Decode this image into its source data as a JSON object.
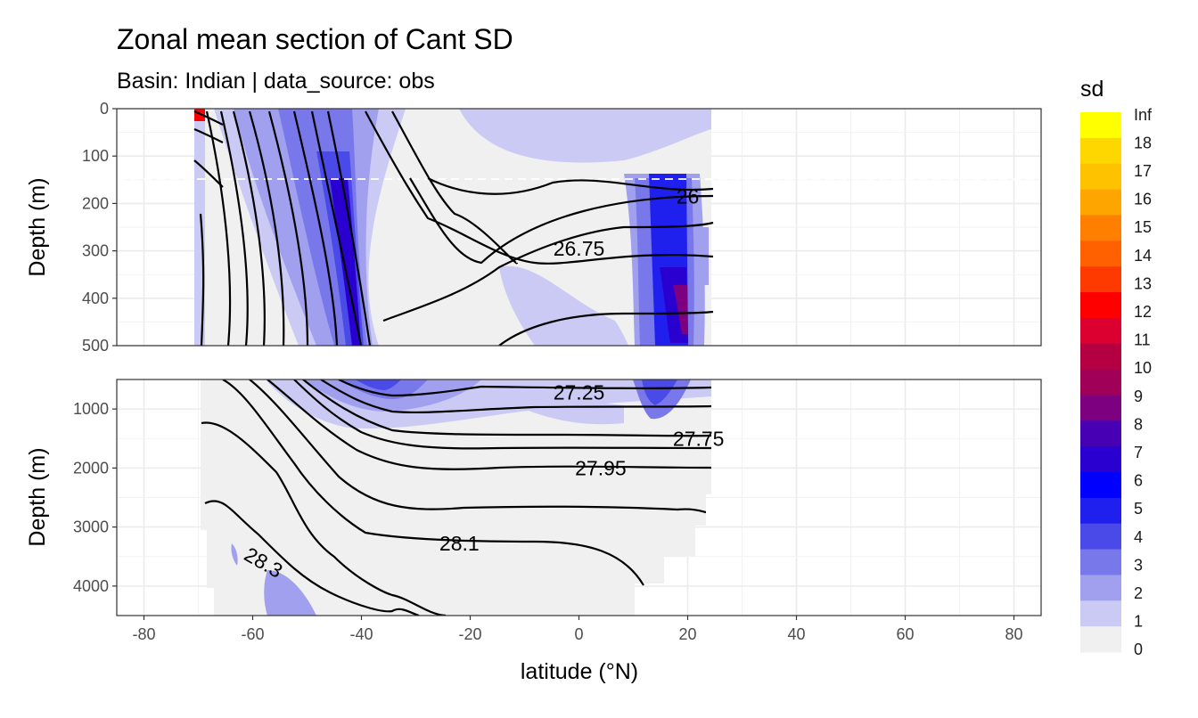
{
  "chart_data": {
    "type": "heatmap",
    "title": "Zonal mean section of Cant SD",
    "subtitle": "Basin: Indian | data_source: obs",
    "xlabel": "latitude (°N)",
    "ylabel": "Depth (m)",
    "xlim": [
      -85,
      85
    ],
    "x_ticks": [
      "-80",
      "-60",
      "-40",
      "-20",
      "0",
      "20",
      "40",
      "60",
      "80"
    ],
    "panels": [
      {
        "ylim": [
          0,
          500
        ],
        "y_ticks": [
          "0",
          "100",
          "200",
          "300",
          "400",
          "500"
        ],
        "reference_line_depth": 150
      },
      {
        "ylim": [
          500,
          4500
        ],
        "y_ticks": [
          "1000",
          "2000",
          "3000",
          "4000"
        ]
      }
    ],
    "legend": {
      "title": "sd",
      "position": "right",
      "labels": [
        "Inf",
        "18",
        "17",
        "16",
        "15",
        "14",
        "13",
        "12",
        "11",
        "10",
        "9",
        "8",
        "7",
        "6",
        "5",
        "4",
        "3",
        "2",
        "1",
        "0"
      ],
      "colors": [
        "#ffff00",
        "#ffd700",
        "#ffc200",
        "#ffa500",
        "#ff8000",
        "#ff6000",
        "#ff3a00",
        "#ff0000",
        "#dc0030",
        "#b40040",
        "#a00058",
        "#7c0080",
        "#4800b4",
        "#2a00d0",
        "#0000ff",
        "#2020ee",
        "#4a4ae8",
        "#7878ea",
        "#a0a0ee",
        "#cacaf4",
        "#f0f0f0"
      ]
    },
    "density_contours": [
      {
        "label": "26",
        "x": 20,
        "y": 185
      },
      {
        "label": "26.75",
        "x": 0,
        "y": 295
      },
      {
        "label": "27.25",
        "x": 0,
        "y": 720
      },
      {
        "label": "27.75",
        "x": 22,
        "y": 1500
      },
      {
        "label": "27.95",
        "x": 4,
        "y": 2000
      },
      {
        "label": "28.1",
        "x": -22,
        "y": 3280
      },
      {
        "label": "28.3",
        "x": -58,
        "y": 3600
      }
    ]
  }
}
